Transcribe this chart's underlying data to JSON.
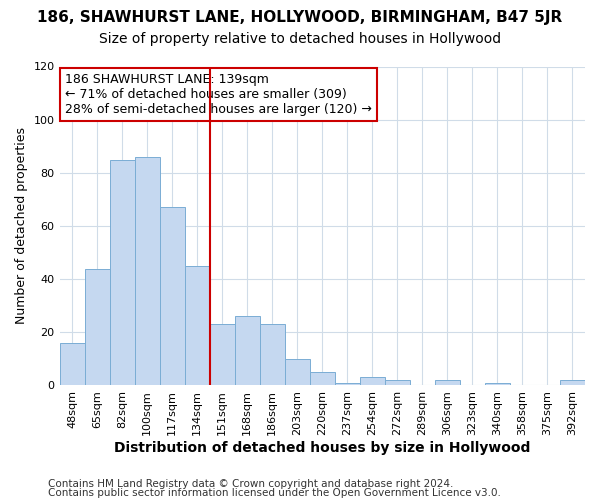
{
  "title": "186, SHAWHURST LANE, HOLLYWOOD, BIRMINGHAM, B47 5JR",
  "subtitle": "Size of property relative to detached houses in Hollywood",
  "xlabel": "Distribution of detached houses by size in Hollywood",
  "ylabel": "Number of detached properties",
  "categories": [
    "48sqm",
    "65sqm",
    "82sqm",
    "100sqm",
    "117sqm",
    "134sqm",
    "151sqm",
    "168sqm",
    "186sqm",
    "203sqm",
    "220sqm",
    "237sqm",
    "254sqm",
    "272sqm",
    "289sqm",
    "306sqm",
    "323sqm",
    "340sqm",
    "358sqm",
    "375sqm",
    "392sqm"
  ],
  "values": [
    16,
    44,
    85,
    86,
    67,
    45,
    23,
    26,
    23,
    10,
    5,
    1,
    3,
    2,
    0,
    2,
    0,
    1,
    0,
    0,
    2
  ],
  "bar_color": "#c5d8f0",
  "bar_edge_color": "#7aadd4",
  "reference_line_x": 5.5,
  "reference_line_color": "#cc0000",
  "annotation_line1": "186 SHAWHURST LANE: 139sqm",
  "annotation_line2": "← 71% of detached houses are smaller (309)",
  "annotation_line3": "28% of semi-detached houses are larger (120) →",
  "annotation_box_color": "#ffffff",
  "annotation_box_edge_color": "#cc0000",
  "ylim": [
    0,
    120
  ],
  "yticks": [
    0,
    20,
    40,
    60,
    80,
    100,
    120
  ],
  "footer_line1": "Contains HM Land Registry data © Crown copyright and database right 2024.",
  "footer_line2": "Contains public sector information licensed under the Open Government Licence v3.0.",
  "background_color": "#ffffff",
  "plot_background_color": "#ffffff",
  "grid_color": "#d0dce8",
  "title_fontsize": 11,
  "subtitle_fontsize": 10,
  "xlabel_fontsize": 10,
  "ylabel_fontsize": 9,
  "tick_fontsize": 8,
  "annotation_fontsize": 9,
  "footer_fontsize": 7.5
}
